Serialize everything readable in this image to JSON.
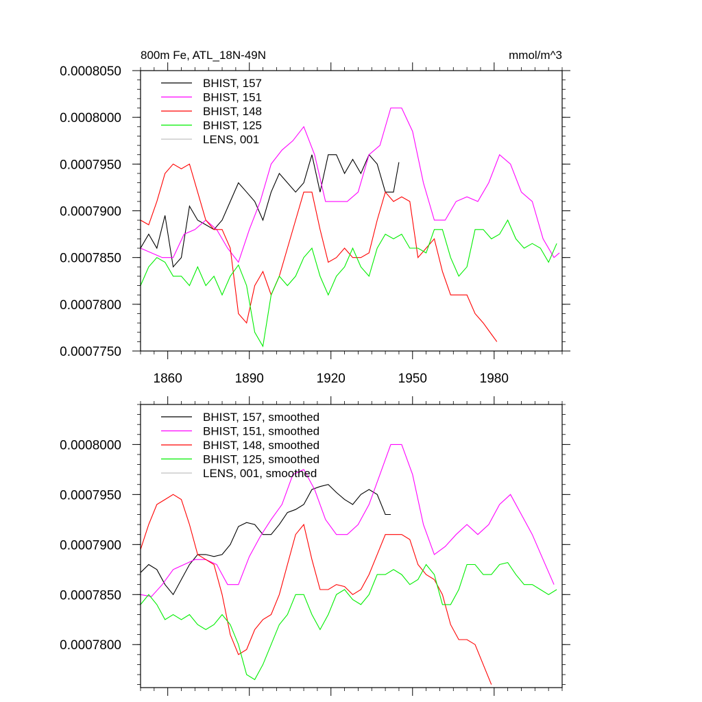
{
  "chart_data": [
    {
      "type": "line",
      "title": "800m Fe, ATL_18N-49N",
      "units": "mmol/m^3",
      "xlim": [
        1850,
        2005
      ],
      "ylim": [
        0.000775,
        0.000805
      ],
      "xticks": [
        1860,
        1890,
        1920,
        1950,
        1980
      ],
      "x_tick_labels": [
        "1860",
        "1890",
        "1920",
        "1950",
        "1980"
      ],
      "yticks": [
        0.000775,
        0.00078,
        0.000785,
        0.00079,
        0.000795,
        0.0008,
        0.000805
      ],
      "y_tick_labels": [
        "0.0007750",
        "0.0007800",
        "0.0007850",
        "0.0007900",
        "0.0007950",
        "0.0008000",
        "0.0008050"
      ],
      "legend_position": "top-left",
      "grid": false,
      "series": [
        {
          "name": "BHIST, 157",
          "color": "#000000",
          "x": [
            1850,
            1853,
            1856,
            1859,
            1862,
            1865,
            1868,
            1871,
            1874,
            1877,
            1880,
            1883,
            1886,
            1889,
            1892,
            1895,
            1898,
            1901,
            1904,
            1907,
            1910,
            1913,
            1916,
            1919,
            1922,
            1925,
            1928,
            1931,
            1934,
            1937,
            1940,
            1943,
            1945
          ],
          "y": [
            0.000786,
            0.0007875,
            0.000786,
            0.0007895,
            0.000784,
            0.000785,
            0.0007905,
            0.000789,
            0.0007885,
            0.000788,
            0.000789,
            0.000791,
            0.000793,
            0.000792,
            0.000791,
            0.000789,
            0.000792,
            0.000794,
            0.000793,
            0.000792,
            0.000793,
            0.000796,
            0.000792,
            0.000796,
            0.000796,
            0.000794,
            0.0007955,
            0.000794,
            0.000796,
            0.000795,
            0.000792,
            0.000792,
            0.0007952
          ]
        },
        {
          "name": "BHIST, 151",
          "color": "#ff00ff",
          "x": [
            1850,
            1854,
            1858,
            1862,
            1866,
            1870,
            1874,
            1878,
            1882,
            1886,
            1890,
            1894,
            1898,
            1902,
            1906,
            1910,
            1914,
            1918,
            1922,
            1926,
            1930,
            1934,
            1938,
            1942,
            1946,
            1950,
            1954,
            1958,
            1962,
            1966,
            1970,
            1974,
            1978,
            1982,
            1986,
            1990,
            1994,
            1998,
            2002,
            2004
          ],
          "y": [
            0.000786,
            0.0007855,
            0.000785,
            0.000785,
            0.0007875,
            0.000788,
            0.000789,
            0.000788,
            0.000786,
            0.0007845,
            0.000788,
            0.000791,
            0.000795,
            0.0007965,
            0.0007975,
            0.000799,
            0.000796,
            0.000791,
            0.000791,
            0.000791,
            0.000792,
            0.000796,
            0.000797,
            0.000801,
            0.000801,
            0.0007985,
            0.000793,
            0.000789,
            0.000789,
            0.000791,
            0.0007915,
            0.000791,
            0.000793,
            0.000796,
            0.000795,
            0.000792,
            0.000791,
            0.000787,
            0.000785,
            0.0007855
          ]
        },
        {
          "name": "BHIST, 148",
          "color": "#ff0000",
          "x": [
            1850,
            1853,
            1856,
            1859,
            1862,
            1865,
            1868,
            1871,
            1874,
            1877,
            1880,
            1883,
            1886,
            1889,
            1892,
            1895,
            1898,
            1901,
            1904,
            1907,
            1910,
            1913,
            1916,
            1919,
            1922,
            1925,
            1928,
            1931,
            1934,
            1937,
            1940,
            1943,
            1946,
            1949,
            1952,
            1955,
            1958,
            1961,
            1964,
            1967,
            1970,
            1973,
            1976,
            1979,
            1981
          ],
          "y": [
            0.000789,
            0.0007885,
            0.000791,
            0.000794,
            0.000795,
            0.0007945,
            0.000795,
            0.000792,
            0.000789,
            0.000788,
            0.000788,
            0.000786,
            0.000779,
            0.000778,
            0.000782,
            0.0007835,
            0.000781,
            0.000783,
            0.000786,
            0.000789,
            0.000792,
            0.000792,
            0.000788,
            0.0007845,
            0.000785,
            0.000786,
            0.000785,
            0.000785,
            0.0007855,
            0.000789,
            0.000792,
            0.000791,
            0.0007915,
            0.000791,
            0.000785,
            0.000786,
            0.000787,
            0.0007835,
            0.000781,
            0.000781,
            0.000781,
            0.000779,
            0.000778,
            0.0007768,
            0.000776
          ]
        },
        {
          "name": "BHIST, 125",
          "color": "#00ee00",
          "x": [
            1850,
            1853,
            1856,
            1859,
            1862,
            1865,
            1868,
            1871,
            1874,
            1877,
            1880,
            1883,
            1886,
            1889,
            1892,
            1895,
            1898,
            1901,
            1904,
            1907,
            1910,
            1913,
            1916,
            1919,
            1922,
            1925,
            1928,
            1931,
            1934,
            1937,
            1940,
            1943,
            1946,
            1949,
            1952,
            1955,
            1958,
            1961,
            1964,
            1967,
            1970,
            1973,
            1976,
            1979,
            1982,
            1985,
            1988,
            1991,
            1994,
            1997,
            2000,
            2003
          ],
          "y": [
            0.000782,
            0.000784,
            0.000785,
            0.0007845,
            0.000783,
            0.000783,
            0.000782,
            0.000784,
            0.000782,
            0.000783,
            0.000781,
            0.000783,
            0.0007842,
            0.000782,
            0.000777,
            0.0007755,
            0.000781,
            0.000783,
            0.000782,
            0.000783,
            0.000785,
            0.000786,
            0.000783,
            0.000781,
            0.000783,
            0.000784,
            0.000786,
            0.000784,
            0.000783,
            0.000786,
            0.0007875,
            0.000787,
            0.0007875,
            0.000786,
            0.000786,
            0.0007855,
            0.000788,
            0.000788,
            0.000785,
            0.000783,
            0.000784,
            0.000788,
            0.000788,
            0.000787,
            0.0007875,
            0.000789,
            0.000787,
            0.000786,
            0.0007865,
            0.000786,
            0.0007845,
            0.0007865
          ]
        },
        {
          "name": "LENS, 001",
          "color": "#c0c0c0",
          "x": [],
          "y": []
        }
      ]
    },
    {
      "type": "line",
      "xlim": [
        1850,
        2005
      ],
      "ylim": [
        0.0007757,
        0.000804
      ],
      "xticks": [
        1860,
        1890,
        1920,
        1950,
        1980
      ],
      "yticks": [
        0.00078,
        0.000785,
        0.00079,
        0.000795,
        0.0008
      ],
      "y_tick_labels": [
        "0.0007800",
        "0.0007850",
        "0.0007900",
        "0.0007950",
        "0.0008000"
      ],
      "legend_position": "top-left",
      "grid": false,
      "series": [
        {
          "name": "BHIST, 157, smoothed",
          "color": "#000000",
          "x": [
            1850,
            1853,
            1856,
            1859,
            1862,
            1865,
            1868,
            1871,
            1874,
            1877,
            1880,
            1883,
            1886,
            1889,
            1892,
            1895,
            1898,
            1901,
            1904,
            1907,
            1910,
            1913,
            1916,
            1919,
            1922,
            1925,
            1928,
            1931,
            1934,
            1937,
            1940,
            1942
          ],
          "y": [
            0.0007872,
            0.000788,
            0.0007875,
            0.000786,
            0.000785,
            0.0007865,
            0.000788,
            0.000789,
            0.000789,
            0.0007888,
            0.000789,
            0.00079,
            0.0007918,
            0.0007922,
            0.000792,
            0.000791,
            0.000791,
            0.000792,
            0.0007932,
            0.0007935,
            0.000794,
            0.0007955,
            0.0007958,
            0.000796,
            0.0007952,
            0.0007945,
            0.000794,
            0.000795,
            0.0007955,
            0.000795,
            0.000793,
            0.000793
          ]
        },
        {
          "name": "BHIST, 151, smoothed",
          "color": "#ff00ff",
          "x": [
            1850,
            1854,
            1858,
            1862,
            1866,
            1870,
            1874,
            1878,
            1882,
            1886,
            1890,
            1894,
            1898,
            1902,
            1906,
            1910,
            1914,
            1918,
            1922,
            1926,
            1930,
            1934,
            1938,
            1942,
            1946,
            1950,
            1954,
            1958,
            1962,
            1966,
            1970,
            1974,
            1978,
            1982,
            1986,
            1990,
            1994,
            1998,
            2002
          ],
          "y": [
            0.000785,
            0.0007848,
            0.000786,
            0.0007875,
            0.000788,
            0.0007885,
            0.0007885,
            0.000788,
            0.000786,
            0.000786,
            0.0007888,
            0.0007908,
            0.0007925,
            0.000794,
            0.000797,
            0.0007975,
            0.0007955,
            0.0007925,
            0.000791,
            0.000791,
            0.000792,
            0.000794,
            0.000797,
            0.0008,
            0.0008,
            0.000797,
            0.000792,
            0.000789,
            0.0007898,
            0.000791,
            0.000792,
            0.000791,
            0.000792,
            0.000794,
            0.000795,
            0.000793,
            0.000791,
            0.0007885,
            0.000786
          ]
        },
        {
          "name": "BHIST, 148, smoothed",
          "color": "#ff0000",
          "x": [
            1850,
            1853,
            1856,
            1859,
            1862,
            1865,
            1868,
            1871,
            1874,
            1877,
            1880,
            1883,
            1886,
            1889,
            1892,
            1895,
            1898,
            1901,
            1904,
            1907,
            1910,
            1913,
            1916,
            1919,
            1922,
            1925,
            1928,
            1931,
            1934,
            1937,
            1940,
            1943,
            1946,
            1949,
            1952,
            1955,
            1958,
            1961,
            1964,
            1967,
            1970,
            1973,
            1976,
            1979
          ],
          "y": [
            0.0007895,
            0.000792,
            0.000794,
            0.0007945,
            0.000795,
            0.0007945,
            0.000792,
            0.000789,
            0.0007885,
            0.000788,
            0.000785,
            0.000781,
            0.000779,
            0.0007795,
            0.0007815,
            0.0007825,
            0.000783,
            0.000785,
            0.000788,
            0.000791,
            0.000792,
            0.0007885,
            0.0007855,
            0.0007855,
            0.000786,
            0.0007858,
            0.000785,
            0.0007855,
            0.000787,
            0.000789,
            0.000791,
            0.000791,
            0.000791,
            0.0007905,
            0.000788,
            0.000787,
            0.0007865,
            0.000785,
            0.000782,
            0.0007805,
            0.0007805,
            0.00078,
            0.000778,
            0.000776
          ]
        },
        {
          "name": "BHIST, 125, smoothed",
          "color": "#00ee00",
          "x": [
            1850,
            1853,
            1856,
            1859,
            1862,
            1865,
            1868,
            1871,
            1874,
            1877,
            1880,
            1883,
            1886,
            1889,
            1892,
            1895,
            1898,
            1901,
            1904,
            1907,
            1910,
            1913,
            1916,
            1919,
            1922,
            1925,
            1928,
            1931,
            1934,
            1937,
            1940,
            1943,
            1946,
            1949,
            1952,
            1955,
            1958,
            1961,
            1964,
            1967,
            1970,
            1973,
            1976,
            1979,
            1982,
            1985,
            1988,
            1991,
            1994,
            1997,
            2000,
            2003
          ],
          "y": [
            0.000784,
            0.000785,
            0.000784,
            0.0007825,
            0.000783,
            0.0007825,
            0.000783,
            0.000782,
            0.0007815,
            0.000782,
            0.000783,
            0.000782,
            0.00078,
            0.000777,
            0.0007765,
            0.000778,
            0.00078,
            0.000782,
            0.000783,
            0.000785,
            0.000785,
            0.000783,
            0.0007815,
            0.000783,
            0.000785,
            0.0007855,
            0.0007845,
            0.000784,
            0.000785,
            0.000787,
            0.000787,
            0.0007875,
            0.000787,
            0.000786,
            0.0007865,
            0.000788,
            0.000787,
            0.000784,
            0.000784,
            0.0007855,
            0.000788,
            0.000788,
            0.000787,
            0.000787,
            0.000788,
            0.0007882,
            0.000787,
            0.000786,
            0.000786,
            0.0007855,
            0.000785,
            0.0007855
          ]
        },
        {
          "name": "LENS, 001, smoothed",
          "color": "#c0c0c0",
          "x": [],
          "y": []
        }
      ]
    }
  ]
}
